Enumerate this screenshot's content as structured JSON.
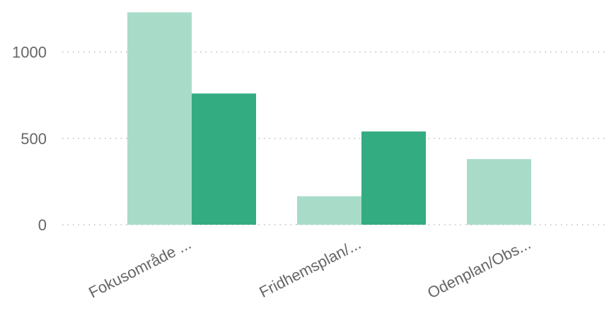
{
  "chart_data": {
    "type": "bar",
    "categories": [
      "Fokusområde ...",
      "Fridhemsplan/...",
      "Odenplan/Obs..."
    ],
    "series": [
      {
        "values": [
          1230,
          165,
          380
        ],
        "color": "#a8dcc9"
      },
      {
        "values": [
          760,
          540,
          null
        ],
        "color": "#34ac81"
      }
    ],
    "yticks": [
      0,
      500,
      1000
    ],
    "ylim": [
      0,
      1240
    ],
    "grid": true,
    "title": "",
    "xlabel": "",
    "ylabel": ""
  }
}
